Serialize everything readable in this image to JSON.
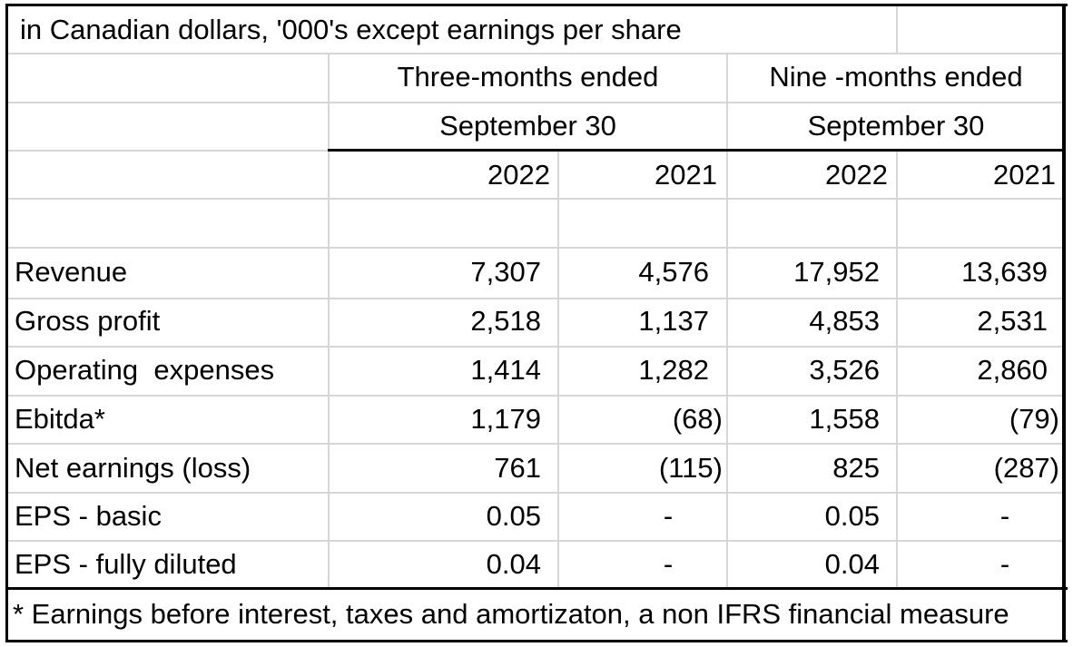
{
  "header": {
    "unit_note": "in Canadian dollars, '000's except earnings per share",
    "group_three": "Three-months ended",
    "group_nine": "Nine -months ended",
    "period_three": "September 30",
    "period_nine": "September 30",
    "years": [
      "2022",
      "2021",
      "2022",
      "2021"
    ]
  },
  "rows": [
    {
      "label": "Revenue",
      "values": [
        "7,307",
        "4,576",
        "17,952",
        "13,639"
      ]
    },
    {
      "label": "Gross profit",
      "values": [
        "2,518",
        "1,137",
        "4,853",
        "2,531"
      ]
    },
    {
      "label": "Operating  expenses",
      "values": [
        "1,414",
        "1,282",
        "3,526",
        "2,860"
      ]
    },
    {
      "label": "Ebitda*",
      "values": [
        "1,179",
        "(68)",
        "1,558",
        "(79)"
      ]
    },
    {
      "label": "Net earnings (loss)",
      "values": [
        "761",
        "(115)",
        "825",
        "(287)"
      ]
    },
    {
      "label": "EPS - basic",
      "values": [
        "0.05",
        "-",
        "0.05",
        "-"
      ]
    },
    {
      "label": "EPS - fully diluted",
      "values": [
        "0.04",
        "-",
        "0.04",
        "-"
      ]
    }
  ],
  "footnote": "* Earnings before interest, taxes and amortizaton, a non IFRS financial measure"
}
